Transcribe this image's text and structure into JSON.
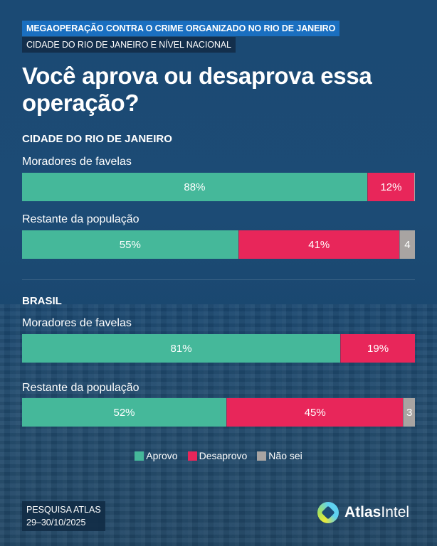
{
  "header": {
    "tag_primary": "MEGAOPERAÇÃO CONTRA O CRIME ORGANIZADO NO RIO DE JANEIRO",
    "tag_secondary": "CIDADE DO RIO DE JANEIRO E NÍVEL NACIONAL",
    "title": "Você aprova ou desaprova essa operação?"
  },
  "colors": {
    "aprovo": "#45b89a",
    "desaprovo": "#e8265a",
    "nao_sei": "#a8a4a2"
  },
  "chart_data": {
    "type": "bar",
    "orientation": "horizontal-stacked-100",
    "title": "Você aprova ou desaprova essa operação?",
    "legend": [
      "Aprovo",
      "Desaprovo",
      "Não sei"
    ],
    "legend_position": "bottom",
    "unit": "%",
    "groups": [
      {
        "name": "CIDADE DO RIO DE JANEIRO",
        "rows": [
          {
            "label": "Moradores de favelas",
            "values": [
              88,
              12,
              0
            ],
            "value_labels": [
              "88%",
              "12%",
              ""
            ]
          },
          {
            "label": "Restante da população",
            "values": [
              55,
              41,
              4
            ],
            "value_labels": [
              "55%",
              "41%",
              "4"
            ]
          }
        ]
      },
      {
        "name": "BRASIL",
        "rows": [
          {
            "label": "Moradores de favelas",
            "values": [
              81,
              19,
              0
            ],
            "value_labels": [
              "81%",
              "19%",
              ""
            ]
          },
          {
            "label": "Restante da população",
            "values": [
              52,
              45,
              3
            ],
            "value_labels": [
              "52%",
              "45%",
              "3"
            ]
          }
        ]
      }
    ]
  },
  "legend": {
    "aprovo": "Aprovo",
    "desaprovo": "Desaprovo",
    "nao_sei": "Não sei"
  },
  "footer": {
    "source_line1": "PESQUISA ATLAS",
    "source_line2": "29–30/10/2025",
    "brand_bold": "Atlas",
    "brand_regular": "Intel"
  }
}
